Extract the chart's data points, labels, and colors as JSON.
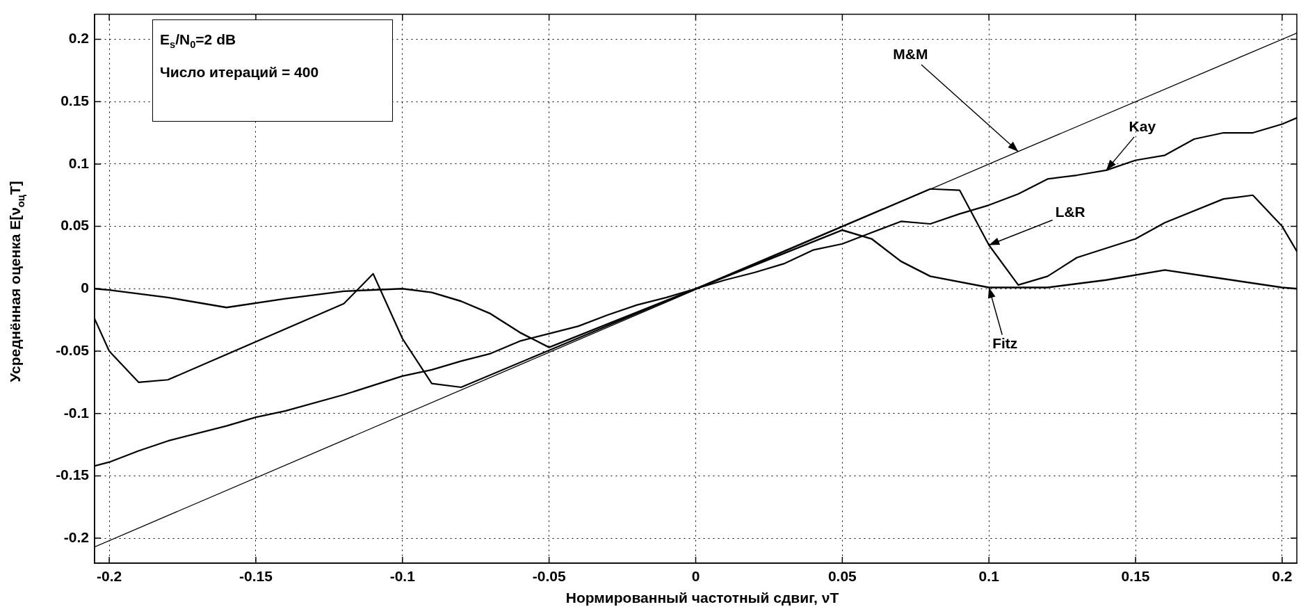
{
  "chart_data": {
    "type": "line",
    "xlabel": "Нормированный частотный сдвиг, νT",
    "ylabel": "Усреднённая оценка E[ν$_{оц}$T]",
    "xlim": [
      -0.205,
      0.205
    ],
    "ylim": [
      -0.22,
      0.22
    ],
    "xticks": [
      -0.2,
      -0.15,
      -0.1,
      -0.05,
      0,
      0.05,
      0.1,
      0.15,
      0.2
    ],
    "yticks": [
      -0.2,
      -0.15,
      -0.1,
      -0.05,
      0,
      0.05,
      0.1,
      0.15,
      0.2
    ],
    "grid": true,
    "legend": false,
    "marker": "none",
    "line_style": "solid",
    "series": [
      {
        "color": "#000000",
        "x": [
          -0.205,
          0.11,
          0.205
        ],
        "values": [
          -0.207,
          0.11,
          0.205
        ]
      },
      {
        "color": "#000000",
        "x": [
          -0.205,
          -0.2,
          -0.19,
          -0.18,
          -0.16,
          -0.15,
          -0.14,
          -0.12,
          -0.1,
          -0.09,
          -0.08,
          -0.07,
          -0.06,
          -0.05,
          -0.04,
          -0.03,
          -0.02,
          -0.01,
          0,
          0.01,
          0.02,
          0.03,
          0.04,
          0.05,
          0.06,
          0.07,
          0.08,
          0.09,
          0.1,
          0.11,
          0.12,
          0.13,
          0.14,
          0.15,
          0.16,
          0.17,
          0.18,
          0.19,
          0.2,
          0.205
        ],
        "values": [
          -0.142,
          -0.139,
          -0.13,
          -0.122,
          -0.11,
          -0.103,
          -0.098,
          -0.085,
          -0.07,
          -0.065,
          -0.058,
          -0.052,
          -0.042,
          -0.036,
          -0.03,
          -0.021,
          -0.013,
          -0.007,
          0,
          0.007,
          0.013,
          0.02,
          0.031,
          0.036,
          0.045,
          0.054,
          0.052,
          0.06,
          0.067,
          0.076,
          0.088,
          0.091,
          0.095,
          0.103,
          0.107,
          0.12,
          0.125,
          0.125,
          0.132,
          0.137
        ]
      },
      {
        "color": "#000000",
        "x": [
          -0.205,
          -0.2,
          -0.19,
          -0.18,
          -0.12,
          -0.11,
          -0.1,
          -0.09,
          -0.08,
          0,
          0.08,
          0.09,
          0.1,
          0.11,
          0.12,
          0.13,
          0.15,
          0.16,
          0.18,
          0.19,
          0.2,
          0.205
        ],
        "values": [
          -0.024,
          -0.05,
          -0.075,
          -0.073,
          -0.012,
          0.012,
          -0.04,
          -0.076,
          -0.079,
          0,
          0.08,
          0.079,
          0.035,
          0.003,
          0.01,
          0.025,
          0.04,
          0.053,
          0.072,
          0.075,
          0.05,
          0.03
        ]
      },
      {
        "color": "#000000",
        "x": [
          -0.205,
          -0.2,
          -0.18,
          -0.16,
          -0.14,
          -0.12,
          -0.1,
          -0.09,
          -0.08,
          -0.07,
          -0.06,
          -0.05,
          0,
          0.05,
          0.06,
          0.07,
          0.08,
          0.1,
          0.12,
          0.14,
          0.16,
          0.18,
          0.2,
          0.205
        ],
        "values": [
          0,
          -0.001,
          -0.007,
          -0.015,
          -0.008,
          -0.002,
          0,
          -0.003,
          -0.01,
          -0.02,
          -0.035,
          -0.047,
          0,
          0.047,
          0.04,
          0.022,
          0.01,
          0.001,
          0.001,
          0.007,
          0.015,
          0.008,
          0.001,
          0
        ]
      }
    ],
    "annotations": [
      "E$_{s}$/N$_{0}$=2 dB",
      "Число итераций = 400",
      {
        "text": "M&M",
        "x": 0.11,
        "y": 0.11
      },
      {
        "text": "Kay",
        "x": 0.14,
        "y": 0.095
      },
      {
        "text": "L&R",
        "x": 0.1,
        "y": 0.035
      },
      {
        "text": "Fitz",
        "x": 0.1,
        "y": 0.001
      }
    ]
  }
}
